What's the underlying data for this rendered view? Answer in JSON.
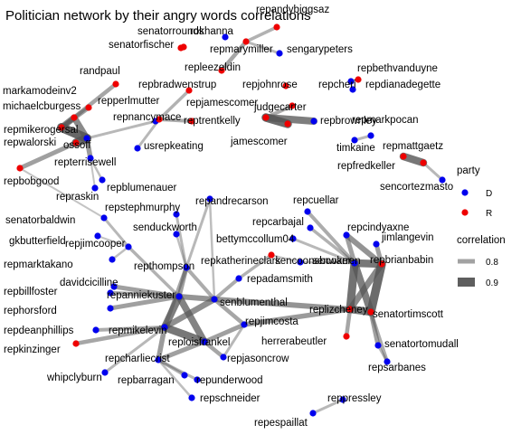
{
  "chart_data": {
    "type": "network",
    "title": "Politician network by their angry words correlations",
    "colors": {
      "D": "#0000ee",
      "R": "#ee0000",
      "edge": "#555555"
    },
    "legend": {
      "party_title": "party",
      "party_items": [
        {
          "label": "D",
          "party": "D"
        },
        {
          "label": "R",
          "party": "R"
        }
      ],
      "corr_title": "correlation",
      "corr_items": [
        {
          "label": "0.8",
          "value": 0.8
        },
        {
          "label": "0.9",
          "value": 0.9
        }
      ],
      "position": "right"
    },
    "nodes": [
      {
        "id": "senatorrounds",
        "label": "senatorrounds",
        "party": "R"
      },
      {
        "id": "rokhanna",
        "label": "rokhanna",
        "party": "D"
      },
      {
        "id": "repandybiggsaz",
        "label": "repandybiggsaz",
        "party": "R"
      },
      {
        "id": "senatorfischer",
        "label": "senatorfischer",
        "party": "R"
      },
      {
        "id": "repmarymiller",
        "label": "repmarymiller",
        "party": "R"
      },
      {
        "id": "sengarypeters",
        "label": "sengarypeters",
        "party": "D"
      },
      {
        "id": "repleezeldin",
        "label": "repleezeldin",
        "party": "R"
      },
      {
        "id": "repbethvanduyne",
        "label": "repbethvanduyne",
        "party": "R"
      },
      {
        "id": "randpaul",
        "label": "randpaul",
        "party": "R"
      },
      {
        "id": "repjohnrose",
        "label": "repjohnrose",
        "party": "R"
      },
      {
        "id": "repcheri",
        "label": "repcheri",
        "party": "D"
      },
      {
        "id": "repdianadegette",
        "label": "repdianadegette",
        "party": "D"
      },
      {
        "id": "markamodeinv2",
        "label": "markamodeinv2",
        "party": "R"
      },
      {
        "id": "repbradwenstrup",
        "label": "repbradwenstrup",
        "party": "R"
      },
      {
        "id": "michaelcburgess",
        "label": "michaelcburgess",
        "party": "R"
      },
      {
        "id": "repperlmutter",
        "label": "repperlmutter",
        "party": "D"
      },
      {
        "id": "repjamescomer",
        "label": "repjamescomer",
        "party": "R"
      },
      {
        "id": "judgecarter",
        "label": "judgecarter",
        "party": "R"
      },
      {
        "id": "repmikerogersal",
        "label": "repmikerogersal",
        "party": "R"
      },
      {
        "id": "repnancymace",
        "label": "repnancymace",
        "party": "R"
      },
      {
        "id": "reptrentkelly",
        "label": "reptrentkelly",
        "party": "R"
      },
      {
        "id": "repbrownley",
        "label": "repbrownley",
        "party": "D"
      },
      {
        "id": "repmarkpocan",
        "label": "repmarkpocan",
        "party": "D"
      },
      {
        "id": "repwalorski",
        "label": "repwalorski",
        "party": "R"
      },
      {
        "id": "ossoff",
        "label": "ossoff",
        "party": "D"
      },
      {
        "id": "jamescomer",
        "label": "jamescomer",
        "party": "R"
      },
      {
        "id": "usrepkeating",
        "label": "usrepkeating",
        "party": "D"
      },
      {
        "id": "timkaine",
        "label": "timkaine",
        "party": "D"
      },
      {
        "id": "repmattgaetz",
        "label": "repmattgaetz",
        "party": "R"
      },
      {
        "id": "repterrisewell",
        "label": "repterrisewell",
        "party": "D"
      },
      {
        "id": "repfredkeller",
        "label": "repfredkeller",
        "party": "R"
      },
      {
        "id": "repbobgood",
        "label": "repbobgood",
        "party": "R"
      },
      {
        "id": "sencortezmasto",
        "label": "sencortezmasto",
        "party": "D"
      },
      {
        "id": "repraskin",
        "label": "repraskin",
        "party": "D"
      },
      {
        "id": "repblumenauer",
        "label": "repblumenauer",
        "party": "D"
      },
      {
        "id": "repandrecarson",
        "label": "repandrecarson",
        "party": "D"
      },
      {
        "id": "repcuellar",
        "label": "repcuellar",
        "party": "D"
      },
      {
        "id": "repstephmurphy",
        "label": "repstephmurphy",
        "party": "D"
      },
      {
        "id": "senatorbaldwin",
        "label": "senatorbaldwin",
        "party": "D"
      },
      {
        "id": "senduckworth",
        "label": "senduckworth",
        "party": "D"
      },
      {
        "id": "repcarbajal",
        "label": "repcarbajal",
        "party": "D"
      },
      {
        "id": "repcindyaxne",
        "label": "repcindyaxne",
        "party": "D"
      },
      {
        "id": "gkbutterfield",
        "label": "gkbutterfield",
        "party": "D"
      },
      {
        "id": "repjimcooper",
        "label": "repjimcooper",
        "party": "D"
      },
      {
        "id": "bettymccollum04",
        "label": "bettymccollum04",
        "party": "D"
      },
      {
        "id": "jimlangevin",
        "label": "jimlangevin",
        "party": "D"
      },
      {
        "id": "repmarktakano",
        "label": "repmarktakano",
        "party": "D"
      },
      {
        "id": "repkatherineclark",
        "label": "repkatherineclark",
        "party": "R"
      },
      {
        "id": "sencoonsbooker",
        "label": "sencoonsbooker",
        "party": "D"
      },
      {
        "id": "senwarren",
        "label": "senwarren",
        "party": "D"
      },
      {
        "id": "repbrianbabin",
        "label": "repbrianbabin",
        "party": "R"
      },
      {
        "id": "repthompson",
        "label": "repthompson",
        "party": "D"
      },
      {
        "id": "davidcicilline",
        "label": "davidcicilline",
        "party": "D"
      },
      {
        "id": "repadamsmith",
        "label": "repadamsmith",
        "party": "D"
      },
      {
        "id": "repbillfoster",
        "label": "repbillfoster",
        "party": "D"
      },
      {
        "id": "repanniekuster",
        "label": "repanniekuster",
        "party": "D"
      },
      {
        "id": "senblumenthal",
        "label": "senblumenthal",
        "party": "D"
      },
      {
        "id": "senatortimscott",
        "label": "senatortimscott",
        "party": "R"
      },
      {
        "id": "rephorsford",
        "label": "rephorsford",
        "party": "D"
      },
      {
        "id": "replizcheney",
        "label": "replizcheney",
        "party": "R"
      },
      {
        "id": "repjimcosta",
        "label": "repjimcosta",
        "party": "D"
      },
      {
        "id": "repdeanphillips",
        "label": "repdeanphillips",
        "party": "D"
      },
      {
        "id": "repmikelevin",
        "label": "repmikelevin",
        "party": "D"
      },
      {
        "id": "reploisfrankel",
        "label": "reploisfrankel",
        "party": "D"
      },
      {
        "id": "herrerabeutler",
        "label": "herrerabeutler",
        "party": "R"
      },
      {
        "id": "senatortomudall",
        "label": "senatortomudall",
        "party": "D"
      },
      {
        "id": "repkinzinger",
        "label": "repkinzinger",
        "party": "R"
      },
      {
        "id": "repjasoncrow",
        "label": "repjasoncrow",
        "party": "D"
      },
      {
        "id": "repcharliecrist",
        "label": "repcharliecrist",
        "party": "D"
      },
      {
        "id": "repsarbanes",
        "label": "repsarbanes",
        "party": "D"
      },
      {
        "id": "whipclyburn",
        "label": "whipclyburn",
        "party": "D"
      },
      {
        "id": "repbarragan",
        "label": "repbarragan",
        "party": "D"
      },
      {
        "id": "repunderwood",
        "label": "repunderwood",
        "party": "D"
      },
      {
        "id": "repschneider",
        "label": "repschneider",
        "party": "D"
      },
      {
        "id": "reppressley",
        "label": "reppressley",
        "party": "D"
      },
      {
        "id": "repespaillat",
        "label": "repespaillat",
        "party": "D"
      }
    ],
    "edges": [
      {
        "source": "senatorrounds",
        "target": "senatorfischer",
        "weight": 0.86
      },
      {
        "source": "repmarymiller",
        "target": "repleezeldin",
        "weight": 0.85
      },
      {
        "source": "repmarymiller",
        "target": "sengarypeters",
        "weight": 0.82
      },
      {
        "source": "repandybiggsaz",
        "target": "repmarymiller",
        "weight": 0.83
      },
      {
        "source": "repbethvanduyne",
        "target": "repcheri",
        "weight": 0.82
      },
      {
        "source": "repcheri",
        "target": "repdianadegette",
        "weight": 0.8
      },
      {
        "source": "repjamescomer",
        "target": "jamescomer",
        "weight": 0.95
      },
      {
        "source": "repjamescomer",
        "target": "repbrownley",
        "weight": 0.92
      },
      {
        "source": "repjamescomer",
        "target": "judgecarter",
        "weight": 0.84
      },
      {
        "source": "repmarkpocan",
        "target": "timkaine",
        "weight": 0.82
      },
      {
        "source": "repmattgaetz",
        "target": "repfredkeller",
        "weight": 0.93
      },
      {
        "source": "repmattgaetz",
        "target": "sencortezmasto",
        "weight": 0.82
      },
      {
        "source": "randpaul",
        "target": "repmikerogersal",
        "weight": 0.85
      },
      {
        "source": "markamodeinv2",
        "target": "repmikerogersal",
        "weight": 0.86
      },
      {
        "source": "michaelcburgess",
        "target": "repmikerogersal",
        "weight": 0.9
      },
      {
        "source": "repmikerogersal",
        "target": "ossoff",
        "weight": 0.96
      },
      {
        "source": "repwalorski",
        "target": "ossoff",
        "weight": 0.95
      },
      {
        "source": "michaelcburgess",
        "target": "ossoff",
        "weight": 0.9
      },
      {
        "source": "repwalorski",
        "target": "repbobgood",
        "weight": 0.86
      },
      {
        "source": "repterrisewell",
        "target": "ossoff",
        "weight": 0.87
      },
      {
        "source": "repperlmutter",
        "target": "ossoff",
        "weight": 0.82
      },
      {
        "source": "repbradwenstrup",
        "target": "repnancymace",
        "weight": 0.83
      },
      {
        "source": "repnancymace",
        "target": "reptrentkelly",
        "weight": 0.84
      },
      {
        "source": "repnancymace",
        "target": "usrepkeating",
        "weight": 0.82
      },
      {
        "source": "repterrisewell",
        "target": "repraskin",
        "weight": 0.8
      },
      {
        "source": "repterrisewell",
        "target": "repblumenauer",
        "weight": 0.81
      },
      {
        "source": "repbobgood",
        "target": "senatorbaldwin",
        "weight": 0.8
      },
      {
        "source": "senatorbaldwin",
        "target": "repjimcooper",
        "weight": 0.82
      },
      {
        "source": "gkbutterfield",
        "target": "repjimcooper",
        "weight": 0.8
      },
      {
        "source": "repmarktakano",
        "target": "repjimcooper",
        "weight": 0.81
      },
      {
        "source": "repjimcooper",
        "target": "repanniekuster",
        "weight": 0.83
      },
      {
        "source": "repstephmurphy",
        "target": "repthompson",
        "weight": 0.82
      },
      {
        "source": "senduckworth",
        "target": "repthompson",
        "weight": 0.81
      },
      {
        "source": "repandrecarson",
        "target": "repthompson",
        "weight": 0.82
      },
      {
        "source": "repandrecarson",
        "target": "senblumenthal",
        "weight": 0.81
      },
      {
        "source": "repthompson",
        "target": "repanniekuster",
        "weight": 0.86
      },
      {
        "source": "repthompson",
        "target": "repmikelevin",
        "weight": 0.85
      },
      {
        "source": "repthompson",
        "target": "senblumenthal",
        "weight": 0.84
      },
      {
        "source": "davidcicilline",
        "target": "repanniekuster",
        "weight": 0.86
      },
      {
        "source": "repbillfoster",
        "target": "repanniekuster",
        "weight": 0.85
      },
      {
        "source": "rephorsford",
        "target": "repanniekuster",
        "weight": 0.86
      },
      {
        "source": "repdeanphillips",
        "target": "repmikelevin",
        "weight": 0.84
      },
      {
        "source": "repkinzinger",
        "target": "repmikelevin",
        "weight": 0.85
      },
      {
        "source": "whipclyburn",
        "target": "repmikelevin",
        "weight": 0.82
      },
      {
        "source": "repanniekuster",
        "target": "repmikelevin",
        "weight": 0.92
      },
      {
        "source": "repanniekuster",
        "target": "reploisfrankel",
        "weight": 0.91
      },
      {
        "source": "repmikelevin",
        "target": "reploisfrankel",
        "weight": 0.93
      },
      {
        "source": "repmikelevin",
        "target": "repcharliecrist",
        "weight": 0.87
      },
      {
        "source": "reploisfrankel",
        "target": "repcharliecrist",
        "weight": 0.86
      },
      {
        "source": "repanniekuster",
        "target": "senblumenthal",
        "weight": 0.88
      },
      {
        "source": "repmikelevin",
        "target": "senblumenthal",
        "weight": 0.89
      },
      {
        "source": "reploisfrankel",
        "target": "repjimcosta",
        "weight": 0.86
      },
      {
        "source": "reploisfrankel",
        "target": "repjasoncrow",
        "weight": 0.85
      },
      {
        "source": "repcharliecrist",
        "target": "repbarragan",
        "weight": 0.83
      },
      {
        "source": "repcharliecrist",
        "target": "repunderwood",
        "weight": 0.82
      },
      {
        "source": "repcharliecrist",
        "target": "repschneider",
        "weight": 0.81
      },
      {
        "source": "senblumenthal",
        "target": "repjimcosta",
        "weight": 0.85
      },
      {
        "source": "senblumenthal",
        "target": "repadamsmith",
        "weight": 0.84
      },
      {
        "source": "repadamsmith",
        "target": "repkatherineclark",
        "weight": 0.83
      },
      {
        "source": "senblumenthal",
        "target": "replizcheney",
        "weight": 0.88
      },
      {
        "source": "repjimcosta",
        "target": "replizcheney",
        "weight": 0.87
      },
      {
        "source": "repjasoncrow",
        "target": "repjimcosta",
        "weight": 0.82
      },
      {
        "source": "repcuellar",
        "target": "senwarren",
        "weight": 0.84
      },
      {
        "source": "repcarbajal",
        "target": "senwarren",
        "weight": 0.83
      },
      {
        "source": "bettymccollum04",
        "target": "senwarren",
        "weight": 0.82
      },
      {
        "source": "repkatherineclark",
        "target": "sencoonsbooker",
        "weight": 0.8
      },
      {
        "source": "sencoonsbooker",
        "target": "senwarren",
        "weight": 0.81
      },
      {
        "source": "repcindyaxne",
        "target": "senwarren",
        "weight": 0.86
      },
      {
        "source": "repcindyaxne",
        "target": "repbrianbabin",
        "weight": 0.88
      },
      {
        "source": "jimlangevin",
        "target": "repbrianbabin",
        "weight": 0.86
      },
      {
        "source": "senwarren",
        "target": "repbrianbabin",
        "weight": 0.93
      },
      {
        "source": "senwarren",
        "target": "replizcheney",
        "weight": 0.94
      },
      {
        "source": "senwarren",
        "target": "senatortimscott",
        "weight": 0.92
      },
      {
        "source": "repbrianbabin",
        "target": "senatortimscott",
        "weight": 0.95
      },
      {
        "source": "replizcheney",
        "target": "senatortimscott",
        "weight": 0.93
      },
      {
        "source": "replizcheney",
        "target": "repbrianbabin",
        "weight": 0.9
      },
      {
        "source": "replizcheney",
        "target": "herrerabeutler",
        "weight": 0.85
      },
      {
        "source": "senatortimscott",
        "target": "senatortomudall",
        "weight": 0.86
      },
      {
        "source": "senatortimscott",
        "target": "repsarbanes",
        "weight": 0.84
      },
      {
        "source": "senatortomudall",
        "target": "repsarbanes",
        "weight": 0.82
      },
      {
        "source": "reppressley",
        "target": "repespaillat",
        "weight": 0.82
      }
    ]
  }
}
